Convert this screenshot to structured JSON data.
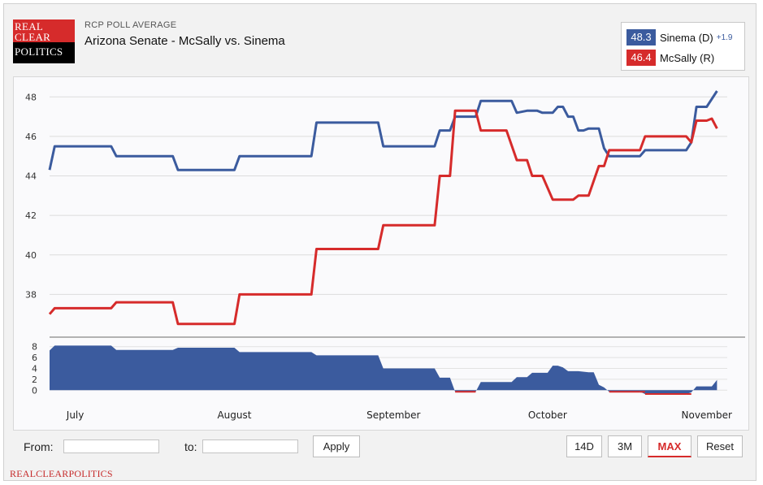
{
  "header": {
    "logo_lines": [
      "REAL",
      "CLEAR",
      "POLITICS"
    ],
    "subtitle": "RCP POLL AVERAGE",
    "title": "Arizona Senate - McSally vs. Sinema"
  },
  "legend": {
    "items": [
      {
        "value": "48.3",
        "name": "Sinema (D)",
        "change": "+1.9",
        "color": "#3b5b9e"
      },
      {
        "value": "46.4",
        "name": "McSally (R)",
        "change": "",
        "color": "#d62b2b"
      }
    ]
  },
  "controls": {
    "from_label": "From:",
    "to_label": "to:",
    "from_value": "",
    "to_value": "",
    "apply_label": "Apply",
    "range_buttons": [
      "14D",
      "3M",
      "MAX"
    ],
    "active_range": "MAX",
    "reset_label": "Reset"
  },
  "footer": {
    "text": "REALCLEARPOLITICS"
  },
  "chart_data": [
    {
      "type": "line",
      "title": "Arizona Senate - McSally vs. Sinema",
      "x_unit": "days from start (July 1)",
      "xlim": [
        0,
        132
      ],
      "ylim": [
        36,
        49
      ],
      "yticks": [
        "38",
        "40",
        "42",
        "44",
        "46",
        "48"
      ],
      "ytick_values": [
        38,
        40,
        42,
        44,
        46,
        48
      ],
      "month_labels": [
        {
          "label": "July",
          "x": 5
        },
        {
          "label": "August",
          "x": 36
        },
        {
          "label": "September",
          "x": 67
        },
        {
          "label": "October",
          "x": 97
        },
        {
          "label": "November",
          "x": 128
        }
      ],
      "grid": true,
      "series": [
        {
          "name": "Sinema (D)",
          "color": "#3b5b9e",
          "points": [
            [
              0,
              44.3
            ],
            [
              1,
              45.5
            ],
            [
              12,
              45.5
            ],
            [
              13,
              45.0
            ],
            [
              24,
              45.0
            ],
            [
              25,
              44.3
            ],
            [
              36,
              44.3
            ],
            [
              37,
              45.0
            ],
            [
              51,
              45.0
            ],
            [
              52,
              46.7
            ],
            [
              64,
              46.7
            ],
            [
              65,
              45.5
            ],
            [
              75,
              45.5
            ],
            [
              76,
              46.3
            ],
            [
              78,
              46.3
            ],
            [
              79,
              47.0
            ],
            [
              83,
              47.0
            ],
            [
              84,
              47.8
            ],
            [
              90,
              47.8
            ],
            [
              91,
              47.2
            ],
            [
              93,
              47.3
            ],
            [
              95,
              47.3
            ],
            [
              96,
              47.2
            ],
            [
              98,
              47.2
            ],
            [
              99,
              47.5
            ],
            [
              100,
              47.5
            ],
            [
              101,
              47.0
            ],
            [
              102,
              47.0
            ],
            [
              103,
              46.3
            ],
            [
              104,
              46.3
            ],
            [
              105,
              46.4
            ],
            [
              107,
              46.4
            ],
            [
              108,
              45.4
            ],
            [
              109,
              45.0
            ],
            [
              115,
              45.0
            ],
            [
              116,
              45.3
            ],
            [
              124,
              45.3
            ],
            [
              125,
              45.7
            ],
            [
              126,
              47.5
            ],
            [
              128,
              47.5
            ],
            [
              130,
              48.3
            ]
          ]
        },
        {
          "name": "McSally (R)",
          "color": "#d62b2b",
          "points": [
            [
              0,
              37.0
            ],
            [
              1,
              37.3
            ],
            [
              12,
              37.3
            ],
            [
              13,
              37.6
            ],
            [
              24,
              37.6
            ],
            [
              25,
              36.5
            ],
            [
              36,
              36.5
            ],
            [
              37,
              38.0
            ],
            [
              51,
              38.0
            ],
            [
              52,
              40.3
            ],
            [
              64,
              40.3
            ],
            [
              65,
              41.5
            ],
            [
              75,
              41.5
            ],
            [
              76,
              44.0
            ],
            [
              78,
              44.0
            ],
            [
              79,
              47.3
            ],
            [
              83,
              47.3
            ],
            [
              84,
              46.3
            ],
            [
              89,
              46.3
            ],
            [
              91,
              44.8
            ],
            [
              93,
              44.8
            ],
            [
              94,
              44.0
            ],
            [
              96,
              44.0
            ],
            [
              98,
              42.8
            ],
            [
              102,
              42.8
            ],
            [
              103,
              43.0
            ],
            [
              105,
              43.0
            ],
            [
              107,
              44.5
            ],
            [
              108,
              44.5
            ],
            [
              109,
              45.3
            ],
            [
              115,
              45.3
            ],
            [
              116,
              46.0
            ],
            [
              124,
              46.0
            ],
            [
              125,
              45.7
            ],
            [
              126,
              46.8
            ],
            [
              128,
              46.8
            ],
            [
              129,
              46.9
            ],
            [
              130,
              46.4
            ]
          ]
        }
      ]
    },
    {
      "type": "area",
      "title": "",
      "x_unit": "days from start (July 1)",
      "xlim": [
        0,
        132
      ],
      "ylim": [
        -1,
        9
      ],
      "yticks": [
        "0",
        "2",
        "4",
        "6",
        "8"
      ],
      "ytick_values": [
        0,
        2,
        4,
        6,
        8
      ],
      "grid": true,
      "series": [
        {
          "name": "",
          "color": "#3b5b9e",
          "points": [
            [
              0,
              7.3
            ],
            [
              1,
              8.2
            ],
            [
              12,
              8.2
            ],
            [
              13,
              7.4
            ],
            [
              24,
              7.4
            ],
            [
              25,
              7.8
            ],
            [
              36,
              7.8
            ],
            [
              37,
              7.0
            ],
            [
              51,
              7.0
            ],
            [
              52,
              6.4
            ],
            [
              64,
              6.4
            ],
            [
              65,
              4.0
            ],
            [
              75,
              4.0
            ],
            [
              76,
              2.3
            ],
            [
              78,
              2.3
            ],
            [
              79,
              -0.3
            ],
            [
              83,
              -0.3
            ],
            [
              84,
              1.5
            ],
            [
              89,
              1.5
            ],
            [
              90,
              1.5
            ],
            [
              91,
              2.4
            ],
            [
              93,
              2.4
            ],
            [
              94,
              3.2
            ],
            [
              96,
              3.2
            ],
            [
              97,
              3.2
            ],
            [
              98,
              4.5
            ],
            [
              99,
              4.5
            ],
            [
              100,
              4.2
            ],
            [
              101,
              3.5
            ],
            [
              103,
              3.5
            ],
            [
              105,
              3.3
            ],
            [
              106,
              3.3
            ],
            [
              107,
              1.0
            ],
            [
              108,
              0.5
            ],
            [
              109,
              -0.3
            ],
            [
              115,
              -0.3
            ],
            [
              116,
              -0.7
            ],
            [
              124,
              -0.7
            ],
            [
              125,
              -0.4
            ],
            [
              126,
              0.7
            ],
            [
              129,
              0.7
            ],
            [
              130,
              1.9
            ]
          ]
        }
      ]
    }
  ]
}
